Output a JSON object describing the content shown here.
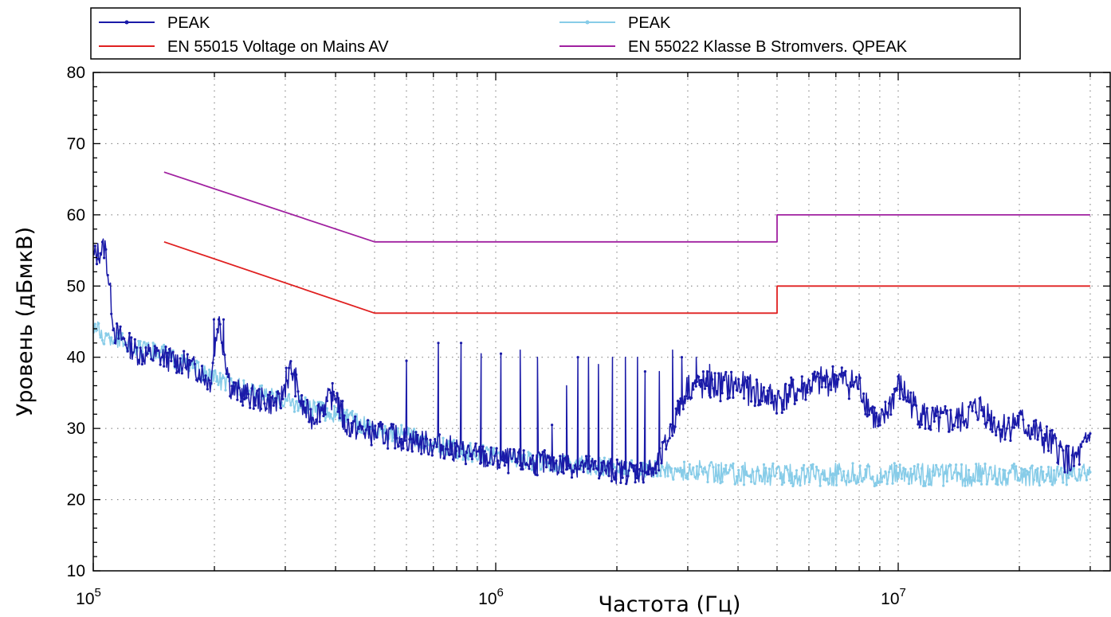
{
  "chart_data": {
    "type": "line",
    "xlabel": "Частота (Гц)",
    "ylabel": "Уровень (дБмкВ)",
    "x_scale": "log",
    "xlim": [
      100000,
      30000000
    ],
    "ylim": [
      10,
      80
    ],
    "grid": true,
    "legend_position": "top",
    "x_tick_labels": [
      {
        "value": 100000,
        "base": "10",
        "exp": "5"
      },
      {
        "value": 1000000,
        "base": "10",
        "exp": "6"
      },
      {
        "value": 10000000,
        "base": "10",
        "exp": "7"
      }
    ],
    "y_ticks": [
      10,
      20,
      30,
      40,
      50,
      60,
      70,
      80
    ],
    "series": [
      {
        "name": "PEAK",
        "color": "#1a1aa8",
        "marker": "dot",
        "noise": 1.8,
        "points": [
          [
            100000,
            54
          ],
          [
            107000,
            55.5
          ],
          [
            113000,
            43.5
          ],
          [
            130000,
            40.5
          ],
          [
            150000,
            40
          ],
          [
            170000,
            39
          ],
          [
            185000,
            38
          ],
          [
            195000,
            36.5
          ],
          [
            205000,
            45.3
          ],
          [
            220000,
            35.5
          ],
          [
            260000,
            34
          ],
          [
            290000,
            33.5
          ],
          [
            310000,
            38.5
          ],
          [
            330000,
            33
          ],
          [
            350000,
            31.5
          ],
          [
            400000,
            35
          ],
          [
            420000,
            30.5
          ],
          [
            480000,
            29.5
          ],
          [
            600000,
            28.5
          ],
          [
            800000,
            27
          ],
          [
            1000000,
            25.5
          ],
          [
            1500000,
            25
          ],
          [
            2000000,
            24
          ],
          [
            2500000,
            24
          ],
          [
            3000000,
            36
          ],
          [
            4000000,
            36
          ],
          [
            5000000,
            34
          ],
          [
            6000000,
            36
          ],
          [
            7000000,
            37
          ],
          [
            8000000,
            36
          ],
          [
            9000000,
            30
          ],
          [
            10000000,
            36
          ],
          [
            11000000,
            33
          ],
          [
            12000000,
            31
          ],
          [
            14000000,
            31
          ],
          [
            16000000,
            33
          ],
          [
            18000000,
            30
          ],
          [
            20000000,
            31
          ],
          [
            23000000,
            28.5
          ],
          [
            25000000,
            27
          ],
          [
            27000000,
            25
          ],
          [
            29000000,
            27
          ],
          [
            30000000,
            29
          ]
        ],
        "spikes": [
          [
            205000,
            45.3
          ],
          [
            310000,
            38.5
          ],
          [
            405000,
            35
          ],
          [
            600000,
            39.5
          ],
          [
            720000,
            42
          ],
          [
            820000,
            42
          ],
          [
            920000,
            40.5
          ],
          [
            1030000,
            40.5
          ],
          [
            1150000,
            41
          ],
          [
            1270000,
            40
          ],
          [
            1380000,
            30.5
          ],
          [
            1500000,
            36
          ],
          [
            1600000,
            40
          ],
          [
            1700000,
            40
          ],
          [
            1800000,
            39
          ],
          [
            1950000,
            40
          ],
          [
            2100000,
            40
          ],
          [
            2250000,
            40
          ],
          [
            2350000,
            38
          ],
          [
            2550000,
            38
          ],
          [
            2750000,
            41
          ],
          [
            2900000,
            40
          ],
          [
            3150000,
            40
          ],
          [
            3400000,
            39
          ]
        ]
      },
      {
        "name": "PEAK",
        "color": "#87cce8",
        "marker": "dot",
        "noise": 1.3,
        "points": [
          [
            100000,
            44.5
          ],
          [
            107000,
            42.5
          ],
          [
            113000,
            42.8
          ],
          [
            130000,
            41
          ],
          [
            150000,
            40.5
          ],
          [
            170000,
            39
          ],
          [
            200000,
            37
          ],
          [
            250000,
            35
          ],
          [
            300000,
            34
          ],
          [
            400000,
            32
          ],
          [
            500000,
            30
          ],
          [
            600000,
            29
          ],
          [
            800000,
            27
          ],
          [
            1000000,
            26
          ],
          [
            1500000,
            25
          ],
          [
            2000000,
            24.5
          ],
          [
            3000000,
            24
          ],
          [
            5000000,
            23.5
          ],
          [
            10000000,
            23.5
          ],
          [
            20000000,
            23.5
          ],
          [
            30000000,
            23.5
          ]
        ]
      },
      {
        "name": "EN 55015 Voltage on Mains AV",
        "color": "#e02020",
        "points": [
          [
            150000,
            56.2
          ],
          [
            500000,
            46.2
          ],
          [
            5000000,
            46.2
          ],
          [
            5000000,
            50
          ],
          [
            30000000,
            50
          ]
        ]
      },
      {
        "name": "EN 55022 Klasse B Stromvers. QPEAK",
        "color": "#a020a0",
        "points": [
          [
            150000,
            66
          ],
          [
            500000,
            56.2
          ],
          [
            5000000,
            56.2
          ],
          [
            5000000,
            60
          ],
          [
            30000000,
            60
          ]
        ]
      }
    ]
  }
}
